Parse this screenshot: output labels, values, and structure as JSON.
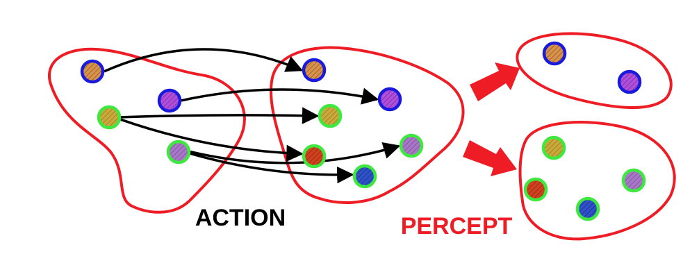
{
  "labels": {
    "action": "ACTION",
    "percept": "PERCEPT"
  },
  "colors": {
    "outline_red": "#ee1c24",
    "arrow_black": "#000000",
    "ring_blue": "#1a1adc",
    "ring_green": "#3ee83e",
    "fill_orange": "#d9924a",
    "fill_purple": "#b04fd9",
    "fill_gold": "#c9a93a",
    "fill_red": "#d1411e",
    "fill_lilac": "#a877c6",
    "fill_navy": "#2f52c9",
    "label_action": "#000000",
    "label_percept": "#ee1c24"
  },
  "groups": [
    {
      "id": "source-set",
      "shape": "blob"
    },
    {
      "id": "target-set",
      "shape": "blob"
    },
    {
      "id": "percept-class-blue",
      "shape": "ellipse"
    },
    {
      "id": "percept-class-green",
      "shape": "blob"
    }
  ],
  "states": {
    "source": [
      {
        "id": "s1",
        "ring": "blue",
        "fill": "orange"
      },
      {
        "id": "s2",
        "ring": "blue",
        "fill": "purple"
      },
      {
        "id": "s3",
        "ring": "green",
        "fill": "gold"
      },
      {
        "id": "s4",
        "ring": "green",
        "fill": "lilac"
      }
    ],
    "target": [
      {
        "id": "t1",
        "ring": "blue",
        "fill": "orange"
      },
      {
        "id": "t2",
        "ring": "blue",
        "fill": "purple"
      },
      {
        "id": "t3",
        "ring": "green",
        "fill": "gold"
      },
      {
        "id": "t4",
        "ring": "green",
        "fill": "red"
      },
      {
        "id": "t5",
        "ring": "green",
        "fill": "lilac"
      },
      {
        "id": "t6",
        "ring": "green",
        "fill": "navy"
      }
    ],
    "percept_blue": [
      {
        "id": "p1",
        "ring": "blue",
        "fill": "orange"
      },
      {
        "id": "p2",
        "ring": "blue",
        "fill": "purple"
      }
    ],
    "percept_green": [
      {
        "id": "p3",
        "ring": "green",
        "fill": "gold"
      },
      {
        "id": "p4",
        "ring": "green",
        "fill": "red"
      },
      {
        "id": "p5",
        "ring": "green",
        "fill": "navy"
      },
      {
        "id": "p6",
        "ring": "green",
        "fill": "lilac"
      }
    ]
  },
  "transitions": [
    {
      "from": "s1",
      "to": "t1"
    },
    {
      "from": "s2",
      "to": "t2"
    },
    {
      "from": "s3",
      "to": "t3"
    },
    {
      "from": "s3",
      "to": "t4"
    },
    {
      "from": "s4",
      "to": "t5"
    },
    {
      "from": "s4",
      "to": "t6"
    }
  ]
}
